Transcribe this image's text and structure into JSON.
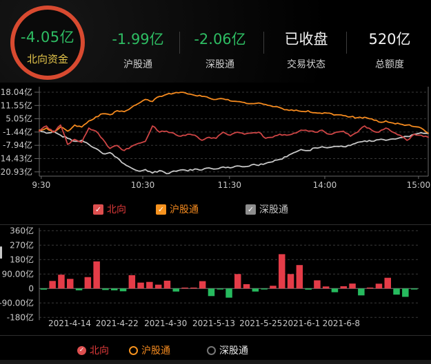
{
  "header": {
    "badge": {
      "value": "-4.05亿",
      "label": "北向资金",
      "value_color": "#2ebd63",
      "label_color": "#e5c64b",
      "ring_color": "#d84a30"
    },
    "columns": [
      {
        "value": "-1.99亿",
        "label": "沪股通",
        "value_color": "#2ebd63"
      },
      {
        "value": "-2.06亿",
        "label": "深股通",
        "value_color": "#2ebd63"
      },
      {
        "value": "已收盘",
        "label": "交易状态",
        "value_color": "#f2f2f2"
      },
      {
        "value": "520亿",
        "label": "总额度",
        "value_color": "#f2f2f2"
      }
    ]
  },
  "icons": {
    "check": "✓"
  },
  "colors": {
    "accent_green": "#2ebd63",
    "accent_yellow": "#e5c64b",
    "ring": "#d84a30",
    "line_north": "#cf4545",
    "line_sh": "#f68b1f",
    "line_sz": "#c8c8c8",
    "bar_up": "#e43c48",
    "bar_down": "#26ba5e",
    "axis_text": "#c9c9c9",
    "grid": "#3a3a3a",
    "axis": "#6a6a6a"
  },
  "legend_line": {
    "items": [
      {
        "label": "北向",
        "color": "#e03a3a",
        "box": "#dd4f4f",
        "checked": true
      },
      {
        "label": "沪股通",
        "color": "#f68b1f",
        "box": "#f6921e",
        "checked": true
      },
      {
        "label": "深股通",
        "color": "#c6c6c6",
        "box": "#8d8d8d",
        "checked": true
      }
    ]
  },
  "legend_bar": {
    "items": [
      {
        "label": "北向",
        "color": "#e03a3a",
        "selected": true
      },
      {
        "label": "沪股通",
        "color": "#f68b1f",
        "selected": false
      },
      {
        "label": "深股通",
        "color": "#e8e8e8",
        "selected": false
      }
    ]
  },
  "chart_data": [
    {
      "type": "line",
      "title": "",
      "xlabel": "",
      "ylabel": "",
      "ylim": [
        -23,
        20.7
      ],
      "grid": true,
      "legend_position": "bottom",
      "y_ticks": [
        {
          "label": "18.04亿",
          "v": 18.04
        },
        {
          "label": "11.55亿",
          "v": 11.55
        },
        {
          "label": "5.05亿",
          "v": 5.05
        },
        {
          "label": "-1.44亿",
          "v": -1.44
        },
        {
          "label": "-7.94亿",
          "v": -7.94
        },
        {
          "label": "-14.43亿",
          "v": -14.43
        },
        {
          "label": "-20.93亿",
          "v": -20.93
        }
      ],
      "x_ticks": [
        {
          "label": "9:30",
          "f": 0.005
        },
        {
          "label": "10:30",
          "f": 0.266
        },
        {
          "label": "11:30",
          "f": 0.489
        },
        {
          "label": "14:00",
          "f": 0.734
        },
        {
          "label": "15:00",
          "f": 0.975
        }
      ],
      "series": [
        {
          "name": "深股通",
          "color": "#c8c8c8",
          "values": [
            -0.5,
            -2.0,
            -1.0,
            -3.0,
            -4.5,
            -6.0,
            -5.5,
            -7.5,
            -9.5,
            -12.0,
            -11.5,
            -14.0,
            -17.0,
            -19.0,
            -20.5,
            -19.8,
            -21.5,
            -20.3,
            -21.8,
            -20.5,
            -20.0,
            -20.5,
            -19.5,
            -20.0,
            -19.0,
            -19.5,
            -18.5,
            -19.0,
            -18.0,
            -18.4,
            -17.5,
            -17.8,
            -16.8,
            -16.0,
            -14.8,
            -13.5,
            -11.5,
            -10.0,
            -10.5,
            -9.2,
            -8.6,
            -9.0,
            -8.4,
            -8.6,
            -8.0,
            -6.5,
            -5.8,
            -6.0,
            -5.2,
            -5.5,
            -4.8,
            -4.2,
            -3.6,
            -2.6,
            -1.8,
            -2.1
          ]
        },
        {
          "name": "沪股通",
          "color": "#f68b1f",
          "values": [
            -0.5,
            0.5,
            -1.5,
            1.0,
            -1.0,
            2.0,
            1.0,
            4.0,
            6.0,
            7.5,
            7.0,
            9.0,
            8.5,
            10.5,
            12.5,
            14.5,
            13.5,
            16.0,
            17.0,
            17.5,
            18.0,
            17.2,
            16.5,
            16.0,
            15.2,
            14.5,
            14.8,
            13.8,
            13.5,
            13.0,
            12.5,
            12.8,
            12.0,
            11.0,
            10.5,
            9.5,
            9.0,
            8.7,
            9.0,
            8.0,
            7.6,
            7.8,
            7.0,
            6.6,
            6.0,
            5.6,
            5.8,
            5.0,
            3.5,
            4.0,
            3.0,
            2.5,
            2.0,
            1.2,
            0.5,
            -2.0
          ]
        },
        {
          "name": "北向",
          "color": "#cf4545",
          "values": [
            -1.0,
            1.5,
            -1.5,
            2.0,
            -7.5,
            -5.0,
            -6.5,
            0.5,
            -1.0,
            -5.0,
            -9.5,
            -8.0,
            -10.5,
            -8.5,
            -7.0,
            -6.0,
            1.5,
            -1.5,
            -1.0,
            -2.0,
            -3.5,
            -2.5,
            -3.0,
            -5.5,
            -4.0,
            -4.5,
            -1.5,
            -3.0,
            -1.5,
            -2.5,
            -2.0,
            -1.5,
            -4.5,
            -4.0,
            -2.5,
            -3.0,
            -2.0,
            -0.5,
            -1.0,
            -1.5,
            -0.5,
            -2.5,
            -1.5,
            -1.0,
            -3.5,
            -1.5,
            1.5,
            -0.5,
            -1.5,
            0.5,
            -1.5,
            -3.0,
            -5.5,
            -2.5,
            -3.0,
            -4.0
          ]
        }
      ]
    },
    {
      "type": "bar",
      "title": "",
      "xlabel": "",
      "ylabel": "",
      "ylim": [
        -200,
        380
      ],
      "grid": true,
      "colors": {
        "positive": "#e43c48",
        "negative": "#26ba5e"
      },
      "y_ticks": [
        {
          "label": "360亿",
          "v": 360
        },
        {
          "label": "270亿",
          "v": 270
        },
        {
          "label": "180亿",
          "v": 180
        },
        {
          "label": "90.00亿",
          "v": 90
        },
        {
          "label": "0",
          "v": 0
        },
        {
          "label": "-90.00亿",
          "v": -90
        },
        {
          "label": "-180亿",
          "v": -180
        }
      ],
      "x_labels": [
        {
          "label": "2021-4-14",
          "f": 0.08
        },
        {
          "label": "2021-4-22",
          "f": 0.205
        },
        {
          "label": "2021-4-30",
          "f": 0.333
        },
        {
          "label": "2021-5-13",
          "f": 0.46
        },
        {
          "label": "2021-5-25",
          "f": 0.584
        },
        {
          "label": "2021-6-1",
          "f": 0.691
        },
        {
          "label": "2021-6-8",
          "f": 0.796
        }
      ],
      "values": [
        -7,
        47,
        86,
        60,
        -11,
        71,
        169,
        -9,
        -11,
        -17,
        83,
        37,
        41,
        24,
        49,
        -19,
        5,
        3,
        46,
        -47,
        -5,
        -57,
        90,
        27,
        -19,
        -6,
        17,
        214,
        90,
        146,
        -7,
        51,
        13,
        -23,
        14,
        31,
        -43,
        2,
        30,
        67,
        -38,
        -52,
        -4
      ]
    }
  ]
}
